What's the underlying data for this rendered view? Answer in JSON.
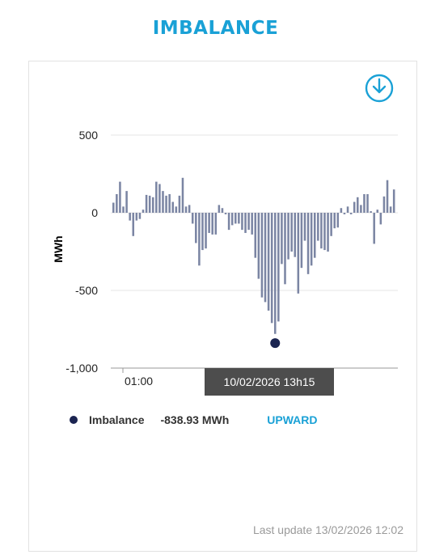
{
  "title": "IMBALANCE",
  "icons": {
    "download": "download-circle-icon"
  },
  "tooltip": {
    "text": "10/02/2026 13h15"
  },
  "legend": {
    "label": "Imbalance",
    "value": "-838.93 MWh",
    "direction": "UPWARD"
  },
  "footer": {
    "last_update": "Last update 13/02/2026 12:02"
  },
  "colors": {
    "title": "#1aa1d6",
    "bars": "#7b85a3",
    "marker": "#1b2451",
    "direction": "#1aa1d6",
    "tooltip_bg": "#4d4d4d"
  },
  "chart_data": {
    "type": "bar",
    "title": "",
    "xlabel": "",
    "ylabel": "MWh",
    "ylim": [
      -1000,
      500
    ],
    "yticks": [
      500,
      0,
      -500,
      -1000
    ],
    "ytick_labels": [
      "500",
      "0",
      "-500",
      "-1,000"
    ],
    "xtick_labels": [
      "01:00"
    ],
    "grid": true,
    "highlight": {
      "label": "10/02/2026 13h15",
      "value": -838.93
    },
    "series": [
      {
        "name": "Imbalance",
        "values": [
          65,
          120,
          200,
          40,
          140,
          -50,
          -150,
          -50,
          -40,
          20,
          115,
          110,
          100,
          200,
          185,
          140,
          110,
          120,
          70,
          40,
          110,
          225,
          40,
          50,
          -70,
          -195,
          -340,
          -240,
          -230,
          -130,
          -140,
          -140,
          50,
          30,
          -10,
          -110,
          -80,
          -70,
          -70,
          -110,
          -130,
          -110,
          -140,
          -290,
          -425,
          -545,
          -575,
          -630,
          -710,
          -780,
          -700,
          -330,
          -460,
          -300,
          -250,
          -285,
          -520,
          -355,
          -180,
          -395,
          -340,
          -290,
          -180,
          -230,
          -240,
          -250,
          -150,
          -100,
          -95,
          30,
          -10,
          40,
          -10,
          70,
          100,
          50,
          120,
          120,
          10,
          -200,
          20,
          -75,
          105,
          210,
          40,
          150
        ]
      }
    ]
  }
}
